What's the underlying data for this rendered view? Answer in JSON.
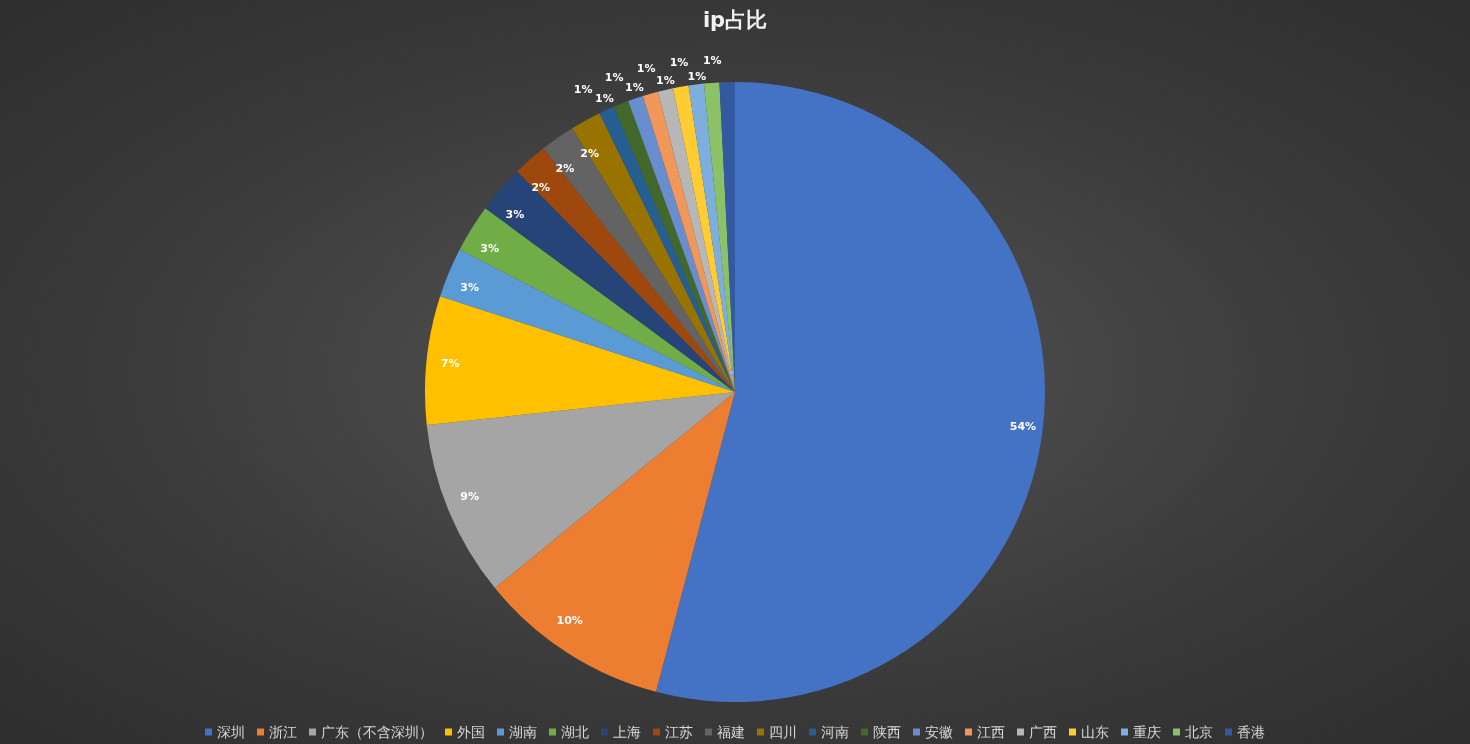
{
  "chart_data": {
    "type": "pie",
    "title": "ip占比",
    "categories": [
      "深圳",
      "浙江",
      "广东（不含深圳）",
      "外国",
      "湖南",
      "湖北",
      "上海",
      "江苏",
      "福建",
      "四川",
      "河南",
      "陕西",
      "安徽",
      "江西",
      "广西",
      "山东",
      "重庆",
      "北京",
      "香港"
    ],
    "values": [
      54.1,
      10,
      9.2,
      6.7,
      2.6,
      2.5,
      2.5,
      1.8,
      1.8,
      1.6,
      0.8,
      0.8,
      0.8,
      0.8,
      0.8,
      0.8,
      0.8,
      0.8,
      0.8
    ],
    "value_labels": [
      "54%",
      "10%",
      "9%",
      "7%",
      "3%",
      "3%",
      "3%",
      "2%",
      "2%",
      "2%",
      "1%",
      "1%",
      "1%",
      "1%",
      "1%",
      "1%",
      "1%",
      "1%",
      "1%"
    ],
    "colors": [
      "#4472c4",
      "#ed7d31",
      "#a5a5a5",
      "#ffc000",
      "#5b9bd5",
      "#70ad47",
      "#264478",
      "#9e480e",
      "#636363",
      "#997300",
      "#255e91",
      "#43682b",
      "#698ed0",
      "#f1975a",
      "#b7b7b7",
      "#ffcd33",
      "#7cafdd",
      "#8cc168",
      "#335aa1"
    ],
    "legend": "bottom"
  }
}
